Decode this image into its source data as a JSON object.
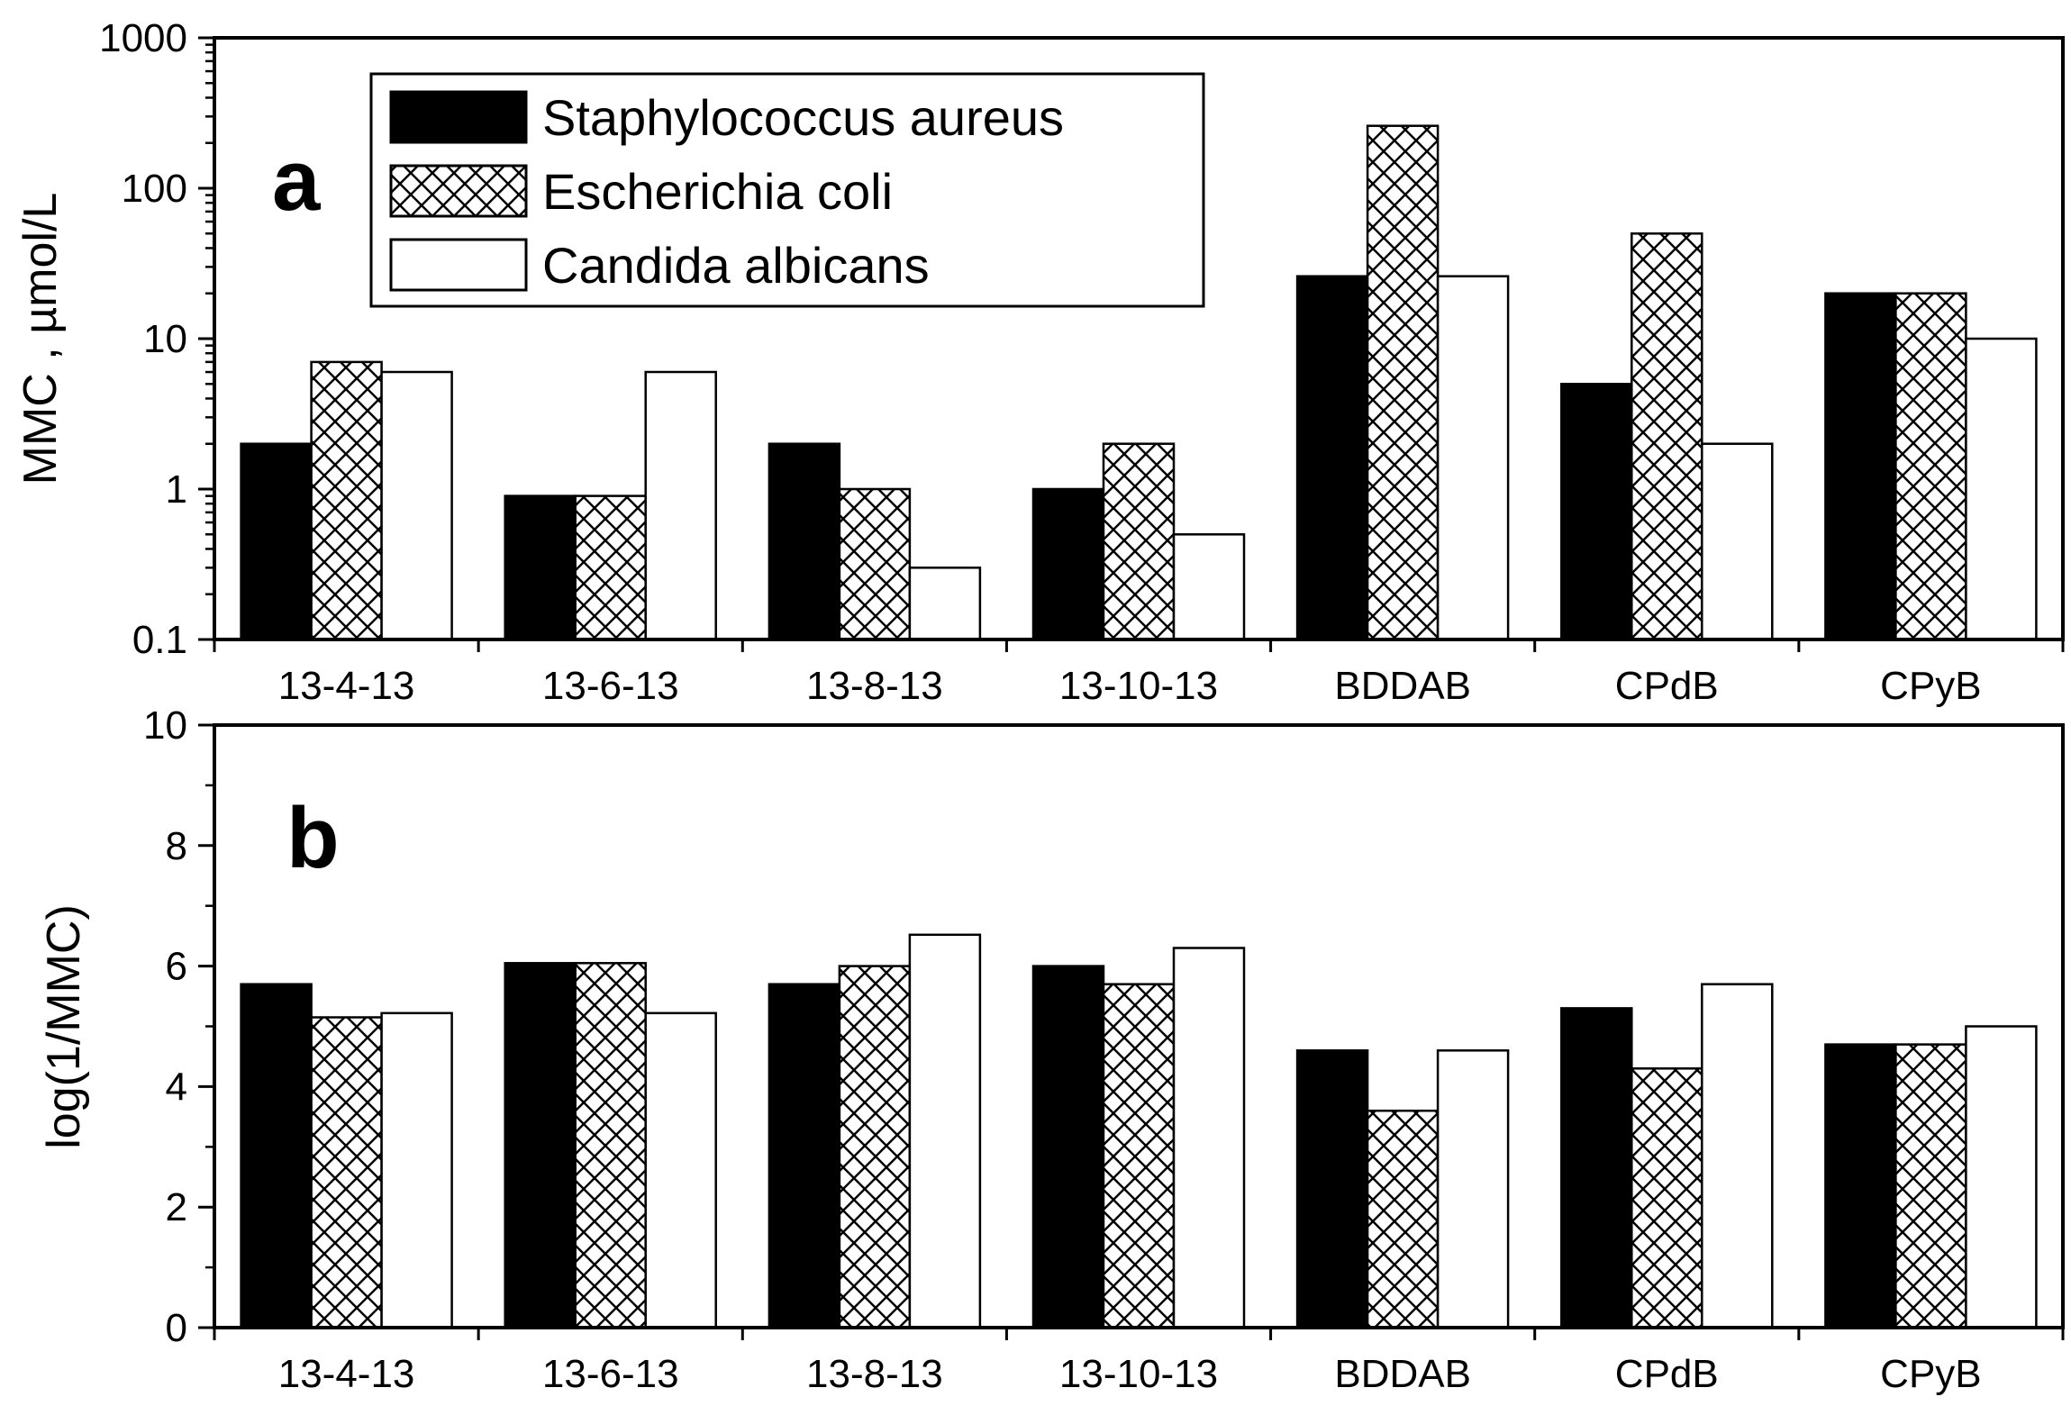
{
  "chart_data": [
    {
      "panel_label": "a",
      "type": "bar",
      "yscale": "log",
      "ylabel": "MMC , µmol/L",
      "ylim": [
        0.1,
        1000
      ],
      "yticks": [
        "0.1",
        "1",
        "10",
        "100",
        "1000"
      ],
      "categories": [
        "13-4-13",
        "13-6-13",
        "13-8-13",
        "13-10-13",
        "BDDAB",
        "CPdB",
        "CPyB"
      ],
      "series": [
        {
          "name": "Staphylococcus aureus",
          "fill": "solid",
          "values": [
            2,
            0.9,
            2,
            1,
            26,
            5,
            20
          ]
        },
        {
          "name": "Escherichia coli",
          "fill": "crosshatch",
          "values": [
            7,
            0.9,
            1,
            2,
            260,
            50,
            20
          ]
        },
        {
          "name": "Candida albicans",
          "fill": "white",
          "values": [
            6,
            6,
            0.3,
            0.5,
            26,
            2,
            10
          ]
        }
      ],
      "legend": "top-left"
    },
    {
      "panel_label": "b",
      "type": "bar",
      "yscale": "linear",
      "ylabel": "log(1/MMC)",
      "ylim": [
        0,
        10
      ],
      "yticks": [
        "0",
        "2",
        "4",
        "6",
        "8",
        "10"
      ],
      "categories": [
        "13-4-13",
        "13-6-13",
        "13-8-13",
        "13-10-13",
        "BDDAB",
        "CPdB",
        "CPyB"
      ],
      "series": [
        {
          "name": "Staphylococcus aureus",
          "fill": "solid",
          "values": [
            5.7,
            6.05,
            5.7,
            6.0,
            4.6,
            5.3,
            4.7
          ]
        },
        {
          "name": "Escherichia coli",
          "fill": "crosshatch",
          "values": [
            5.15,
            6.05,
            6.0,
            5.7,
            3.6,
            4.3,
            4.7
          ]
        },
        {
          "name": "Candida albicans",
          "fill": "white",
          "values": [
            5.22,
            5.22,
            6.52,
            6.3,
            4.6,
            5.7,
            5.0
          ]
        }
      ]
    }
  ],
  "colors": {
    "ink": "#000000",
    "paper": "#ffffff"
  }
}
